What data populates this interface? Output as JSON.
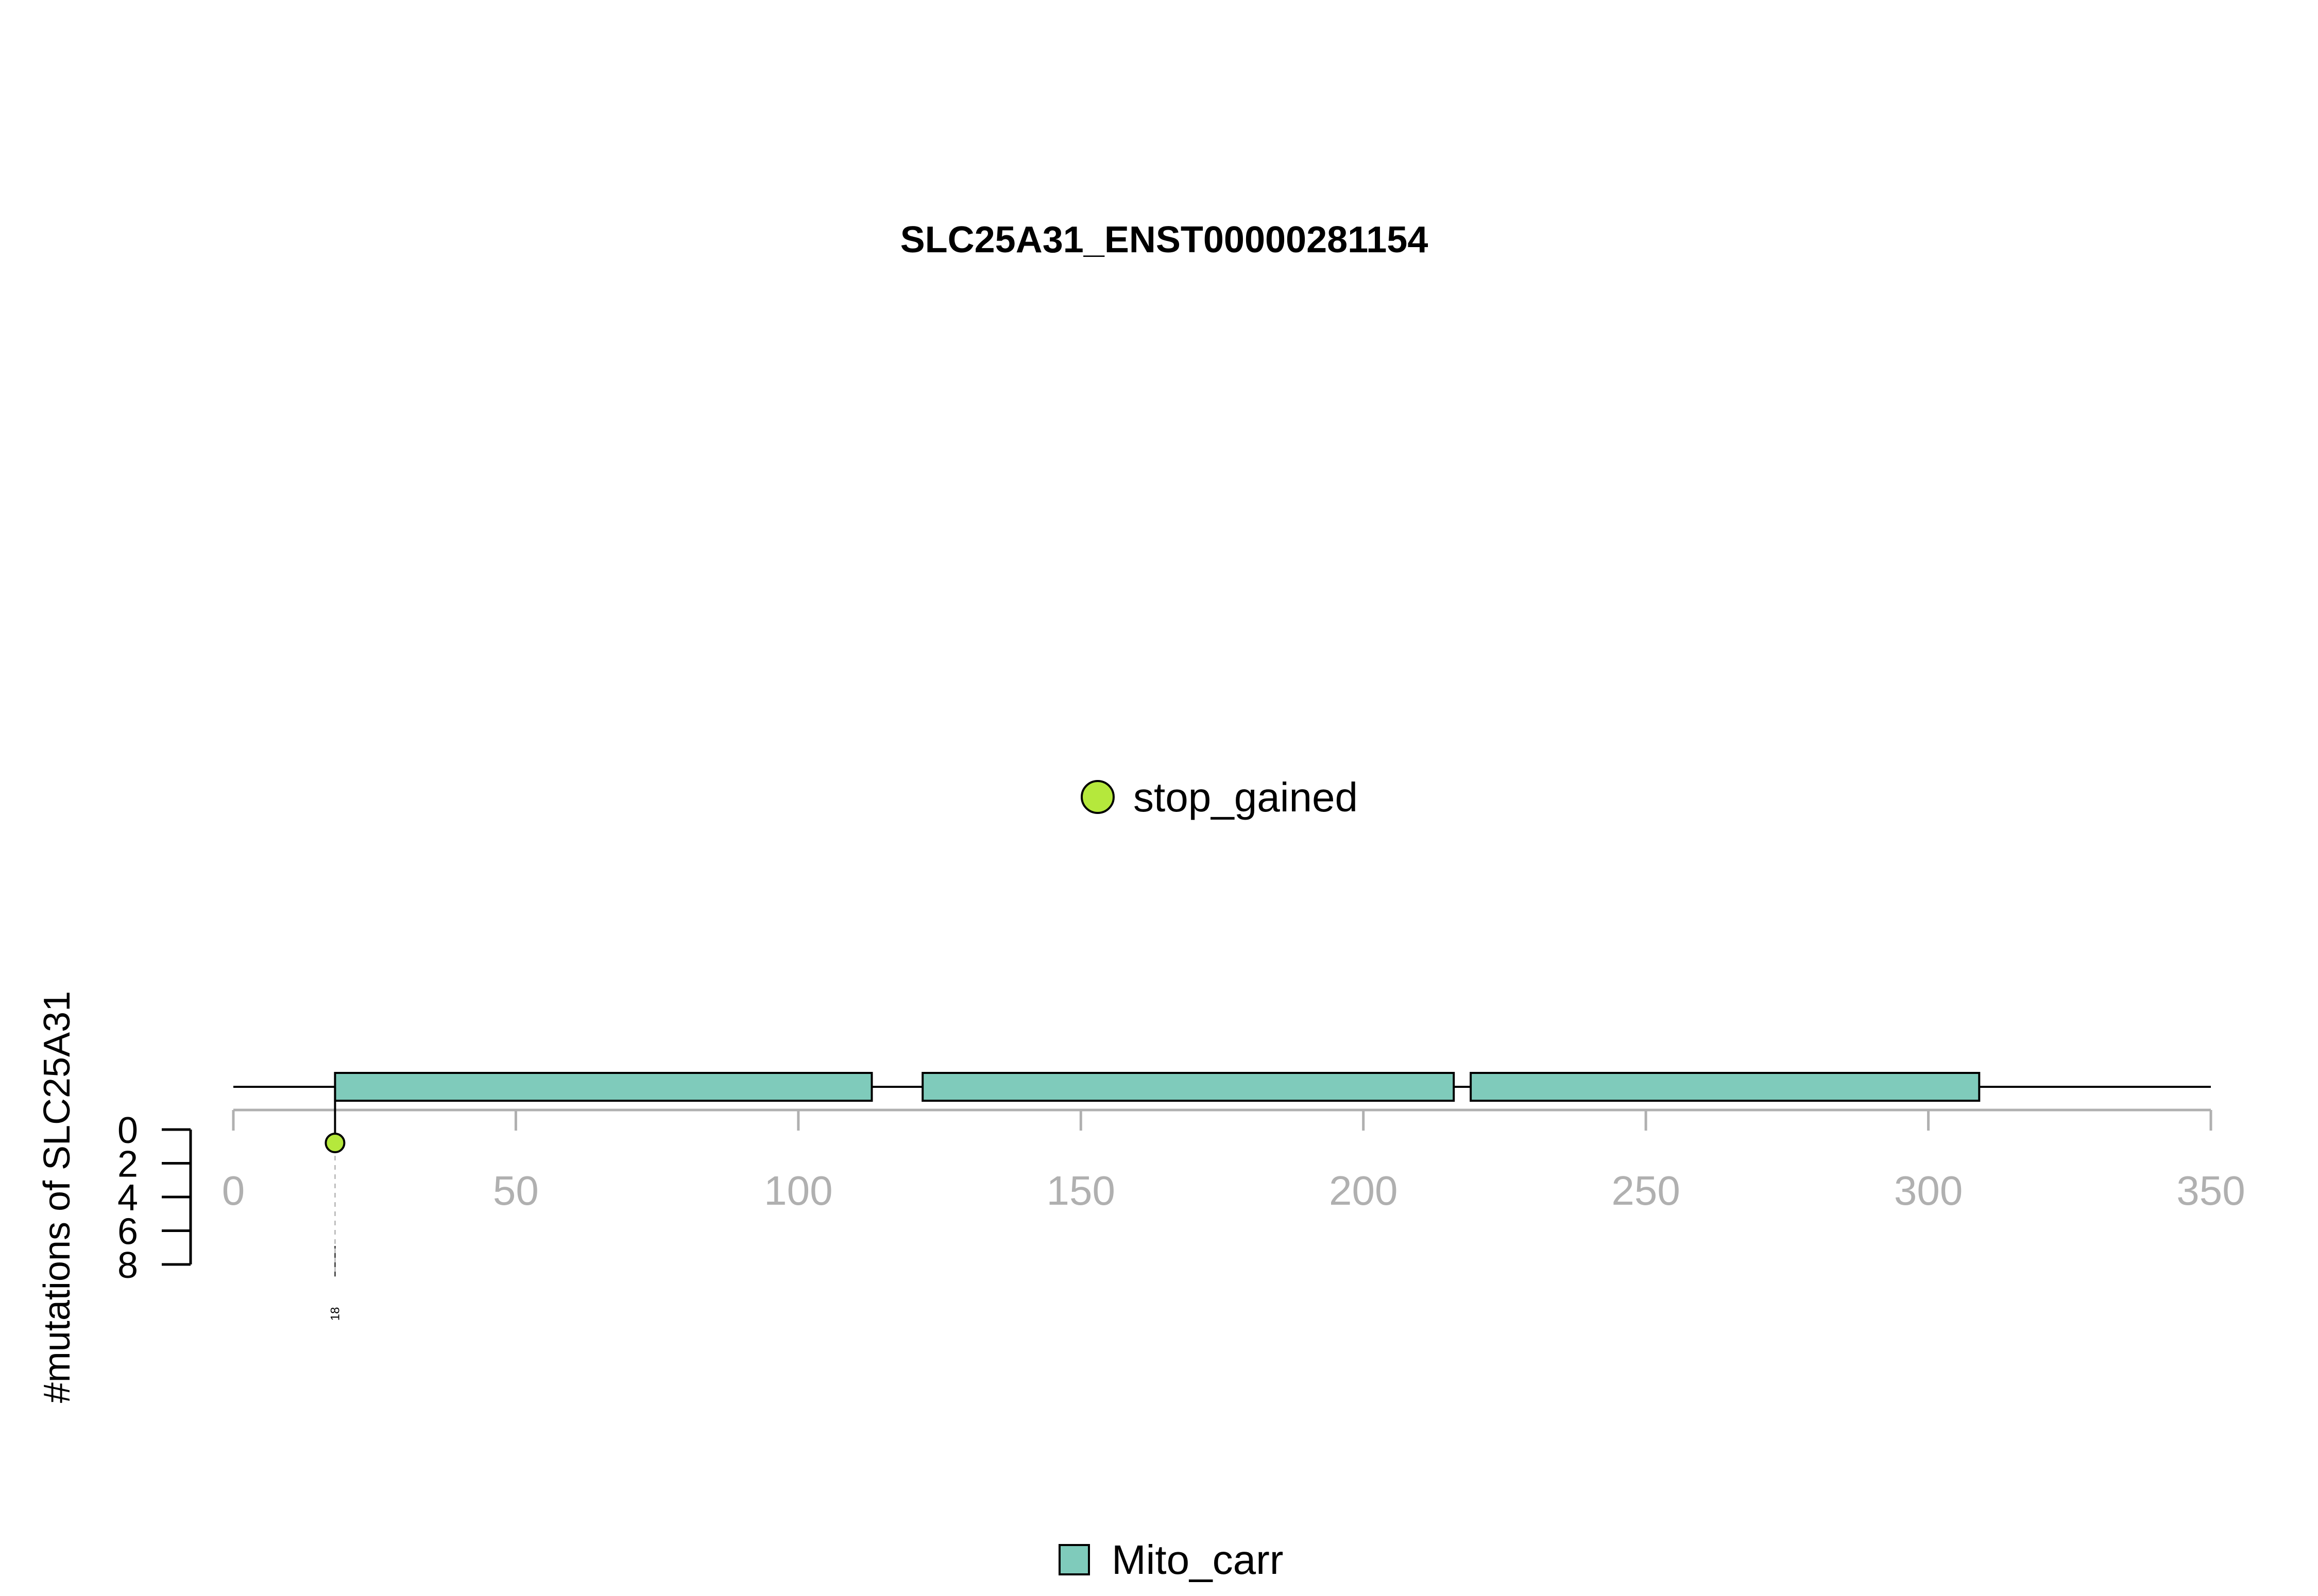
{
  "chart_data": {
    "type": "lollipop",
    "title": "SLC25A31_ENST00000281154",
    "ylabel": "#mutations of SLC25A31",
    "xlim": [
      0,
      350
    ],
    "x_ticks": [
      0,
      50,
      100,
      150,
      200,
      250,
      300,
      350
    ],
    "ylim": [
      0,
      8
    ],
    "y_ticks": [
      0,
      2,
      4,
      6,
      8
    ],
    "protein_length": 350,
    "domains": [
      {
        "name": "Mito_carr",
        "start": 18,
        "end": 113,
        "color": "#7fcbbb"
      },
      {
        "name": "Mito_carr",
        "start": 122,
        "end": 216,
        "color": "#7fcbbb"
      },
      {
        "name": "Mito_carr",
        "start": 219,
        "end": 309,
        "color": "#7fcbbb"
      }
    ],
    "mutations": [
      {
        "position": 18,
        "count": 1,
        "type": "stop_gained",
        "label": "18",
        "color": "#b5e83c"
      }
    ],
    "mutation_legend": [
      {
        "label": "stop_gained",
        "color": "#b5e83c"
      }
    ],
    "domain_legend": [
      {
        "label": "Mito_carr",
        "color": "#7fcbbb"
      }
    ]
  }
}
